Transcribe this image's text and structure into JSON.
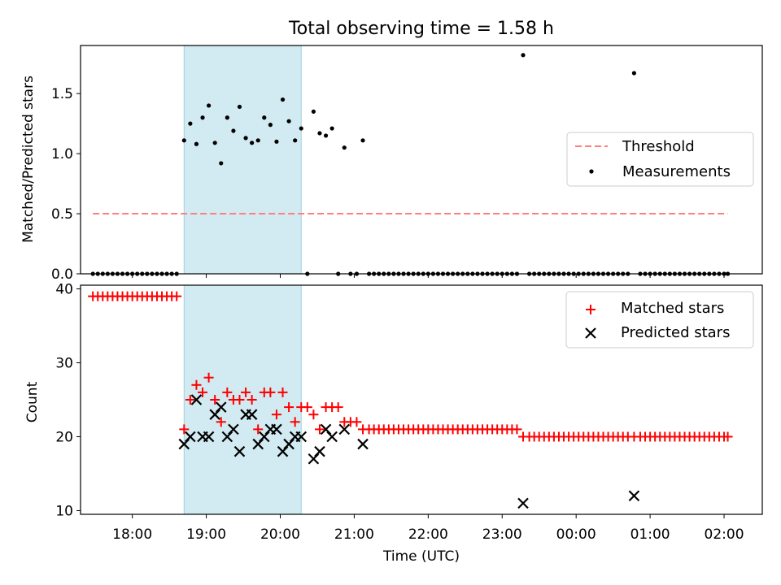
{
  "chart_data": [
    {
      "type": "scatter",
      "title": "Total observing time = 1.58 h",
      "xlabel": "",
      "ylabel": "Matched/Predicted stars",
      "xlim": [
        "17:18",
        "02:31"
      ],
      "ylim": [
        0,
        1.9
      ],
      "yticks": [
        "0.0",
        "0.5",
        "1.0",
        "1.5"
      ],
      "ytick_values": [
        0,
        0.5,
        1.0,
        1.5
      ],
      "xtick_values": [
        "18:00",
        "19:00",
        "20:00",
        "21:00",
        "22:00",
        "23:00",
        "00:00",
        "01:00",
        "02:00"
      ],
      "shaded_interval": [
        "18:42",
        "20:17"
      ],
      "shade_color": "#add8e6",
      "legend": {
        "placement": "center-right",
        "threshold_label": "Threshold",
        "measurements_label": "Measurements"
      },
      "threshold": {
        "x": [
          "17:28",
          "02:03"
        ],
        "y": 0.5,
        "color": "#ff7f7f"
      },
      "measurements_color": "#000000",
      "measurements": [
        [
          "17:28",
          0
        ],
        [
          "17:32",
          0
        ],
        [
          "17:36",
          0
        ],
        [
          "17:40",
          0
        ],
        [
          "17:44",
          0
        ],
        [
          "17:48",
          0
        ],
        [
          "17:52",
          0
        ],
        [
          "17:56",
          0
        ],
        [
          "18:00",
          0
        ],
        [
          "18:04",
          0
        ],
        [
          "18:08",
          0
        ],
        [
          "18:12",
          0
        ],
        [
          "18:16",
          0
        ],
        [
          "18:20",
          0
        ],
        [
          "18:24",
          0
        ],
        [
          "18:28",
          0
        ],
        [
          "18:32",
          0
        ],
        [
          "18:36",
          0
        ],
        [
          "18:42",
          1.11
        ],
        [
          "18:47",
          1.25
        ],
        [
          "18:52",
          1.08
        ],
        [
          "18:57",
          1.3
        ],
        [
          "19:02",
          1.4
        ],
        [
          "19:07",
          1.09
        ],
        [
          "19:12",
          0.92
        ],
        [
          "19:17",
          1.3
        ],
        [
          "19:22",
          1.19
        ],
        [
          "19:27",
          1.39
        ],
        [
          "19:32",
          1.13
        ],
        [
          "19:37",
          1.09
        ],
        [
          "19:42",
          1.11
        ],
        [
          "19:47",
          1.3
        ],
        [
          "19:52",
          1.24
        ],
        [
          "19:57",
          1.1
        ],
        [
          "20:02",
          1.45
        ],
        [
          "20:07",
          1.27
        ],
        [
          "20:12",
          1.11
        ],
        [
          "20:17",
          1.21
        ],
        [
          "20:22",
          0
        ],
        [
          "20:27",
          1.35
        ],
        [
          "20:32",
          1.17
        ],
        [
          "20:37",
          1.15
        ],
        [
          "20:42",
          1.21
        ],
        [
          "20:47",
          0
        ],
        [
          "20:52",
          1.05
        ],
        [
          "20:57",
          0
        ],
        [
          "21:02",
          0
        ],
        [
          "21:07",
          1.11
        ],
        [
          "21:12",
          0
        ],
        [
          "21:16",
          0
        ],
        [
          "21:20",
          0
        ],
        [
          "21:24",
          0
        ],
        [
          "21:28",
          0
        ],
        [
          "21:32",
          0
        ],
        [
          "21:36",
          0
        ],
        [
          "21:40",
          0
        ],
        [
          "21:44",
          0
        ],
        [
          "21:48",
          0
        ],
        [
          "21:52",
          0
        ],
        [
          "21:56",
          0
        ],
        [
          "22:00",
          0
        ],
        [
          "22:04",
          0
        ],
        [
          "22:08",
          0
        ],
        [
          "22:12",
          0
        ],
        [
          "22:16",
          0
        ],
        [
          "22:20",
          0
        ],
        [
          "22:24",
          0
        ],
        [
          "22:28",
          0
        ],
        [
          "22:32",
          0
        ],
        [
          "22:36",
          0
        ],
        [
          "22:40",
          0
        ],
        [
          "22:44",
          0
        ],
        [
          "22:48",
          0
        ],
        [
          "22:52",
          0
        ],
        [
          "22:56",
          0
        ],
        [
          "23:00",
          0
        ],
        [
          "23:04",
          0
        ],
        [
          "23:08",
          0
        ],
        [
          "23:12",
          0
        ],
        [
          "23:17",
          1.82
        ],
        [
          "23:22",
          0
        ],
        [
          "23:26",
          0
        ],
        [
          "23:30",
          0
        ],
        [
          "23:34",
          0
        ],
        [
          "23:38",
          0
        ],
        [
          "23:42",
          0
        ],
        [
          "23:46",
          0
        ],
        [
          "23:50",
          0
        ],
        [
          "23:54",
          0
        ],
        [
          "23:58",
          0
        ],
        [
          "00:02",
          0
        ],
        [
          "00:06",
          0
        ],
        [
          "00:10",
          0
        ],
        [
          "00:14",
          0
        ],
        [
          "00:18",
          0
        ],
        [
          "00:22",
          0
        ],
        [
          "00:26",
          0
        ],
        [
          "00:30",
          0
        ],
        [
          "00:34",
          0
        ],
        [
          "00:38",
          0
        ],
        [
          "00:42",
          0
        ],
        [
          "00:47",
          1.67
        ],
        [
          "00:52",
          0
        ],
        [
          "00:56",
          0
        ],
        [
          "01:00",
          0
        ],
        [
          "01:04",
          0
        ],
        [
          "01:08",
          0
        ],
        [
          "01:12",
          0
        ],
        [
          "01:16",
          0
        ],
        [
          "01:20",
          0
        ],
        [
          "01:24",
          0
        ],
        [
          "01:28",
          0
        ],
        [
          "01:32",
          0
        ],
        [
          "01:36",
          0
        ],
        [
          "01:40",
          0
        ],
        [
          "01:44",
          0
        ],
        [
          "01:48",
          0
        ],
        [
          "01:52",
          0
        ],
        [
          "01:56",
          0
        ],
        [
          "02:00",
          0
        ],
        [
          "02:03",
          0
        ]
      ]
    },
    {
      "type": "scatter",
      "title": "",
      "xlabel": "Time (UTC)",
      "ylabel": "Count",
      "xlim": [
        "17:18",
        "02:31"
      ],
      "ylim": [
        9.5,
        40.5
      ],
      "yticks": [
        "10",
        "20",
        "30",
        "40"
      ],
      "ytick_values": [
        10,
        20,
        30,
        40
      ],
      "xticks": [
        "18:00",
        "19:00",
        "20:00",
        "21:00",
        "22:00",
        "23:00",
        "00:00",
        "01:00",
        "02:00"
      ],
      "xtick_values": [
        "18:00",
        "19:00",
        "20:00",
        "21:00",
        "22:00",
        "23:00",
        "00:00",
        "01:00",
        "02:00"
      ],
      "shaded_interval": [
        "18:42",
        "20:17"
      ],
      "shade_color": "#add8e6",
      "legend": {
        "placement": "top-right",
        "matched_label": "Matched stars",
        "predicted_label": "Predicted stars"
      },
      "series": [
        {
          "name": "Matched stars",
          "marker": "+",
          "color": "#ff0000",
          "points": [
            [
              "17:28",
              39
            ],
            [
              "17:32",
              39
            ],
            [
              "17:36",
              39
            ],
            [
              "17:40",
              39
            ],
            [
              "17:44",
              39
            ],
            [
              "17:48",
              39
            ],
            [
              "17:52",
              39
            ],
            [
              "17:56",
              39
            ],
            [
              "18:00",
              39
            ],
            [
              "18:04",
              39
            ],
            [
              "18:08",
              39
            ],
            [
              "18:12",
              39
            ],
            [
              "18:16",
              39
            ],
            [
              "18:20",
              39
            ],
            [
              "18:24",
              39
            ],
            [
              "18:28",
              39
            ],
            [
              "18:32",
              39
            ],
            [
              "18:36",
              39
            ],
            [
              "18:42",
              21
            ],
            [
              "18:47",
              25
            ],
            [
              "18:52",
              27
            ],
            [
              "18:57",
              26
            ],
            [
              "19:02",
              28
            ],
            [
              "19:07",
              25
            ],
            [
              "19:12",
              22
            ],
            [
              "19:17",
              26
            ],
            [
              "19:22",
              25
            ],
            [
              "19:27",
              25
            ],
            [
              "19:32",
              26
            ],
            [
              "19:37",
              25
            ],
            [
              "19:42",
              21
            ],
            [
              "19:47",
              26
            ],
            [
              "19:52",
              26
            ],
            [
              "19:57",
              23
            ],
            [
              "20:02",
              26
            ],
            [
              "20:07",
              24
            ],
            [
              "20:12",
              22
            ],
            [
              "20:17",
              24
            ],
            [
              "20:22",
              24
            ],
            [
              "20:27",
              23
            ],
            [
              "20:32",
              21
            ],
            [
              "20:37",
              24
            ],
            [
              "20:42",
              24
            ],
            [
              "20:47",
              24
            ],
            [
              "20:52",
              22
            ],
            [
              "20:57",
              22
            ],
            [
              "21:02",
              22
            ],
            [
              "21:07",
              21
            ],
            [
              "21:12",
              21
            ],
            [
              "21:16",
              21
            ],
            [
              "21:20",
              21
            ],
            [
              "21:24",
              21
            ],
            [
              "21:28",
              21
            ],
            [
              "21:32",
              21
            ],
            [
              "21:36",
              21
            ],
            [
              "21:40",
              21
            ],
            [
              "21:44",
              21
            ],
            [
              "21:48",
              21
            ],
            [
              "21:52",
              21
            ],
            [
              "21:56",
              21
            ],
            [
              "22:00",
              21
            ],
            [
              "22:04",
              21
            ],
            [
              "22:08",
              21
            ],
            [
              "22:12",
              21
            ],
            [
              "22:16",
              21
            ],
            [
              "22:20",
              21
            ],
            [
              "22:24",
              21
            ],
            [
              "22:28",
              21
            ],
            [
              "22:32",
              21
            ],
            [
              "22:36",
              21
            ],
            [
              "22:40",
              21
            ],
            [
              "22:44",
              21
            ],
            [
              "22:48",
              21
            ],
            [
              "22:52",
              21
            ],
            [
              "22:56",
              21
            ],
            [
              "23:00",
              21
            ],
            [
              "23:04",
              21
            ],
            [
              "23:08",
              21
            ],
            [
              "23:12",
              21
            ],
            [
              "23:17",
              20
            ],
            [
              "23:22",
              20
            ],
            [
              "23:26",
              20
            ],
            [
              "23:30",
              20
            ],
            [
              "23:34",
              20
            ],
            [
              "23:38",
              20
            ],
            [
              "23:42",
              20
            ],
            [
              "23:46",
              20
            ],
            [
              "23:50",
              20
            ],
            [
              "23:54",
              20
            ],
            [
              "23:58",
              20
            ],
            [
              "00:02",
              20
            ],
            [
              "00:06",
              20
            ],
            [
              "00:10",
              20
            ],
            [
              "00:14",
              20
            ],
            [
              "00:18",
              20
            ],
            [
              "00:22",
              20
            ],
            [
              "00:26",
              20
            ],
            [
              "00:30",
              20
            ],
            [
              "00:34",
              20
            ],
            [
              "00:38",
              20
            ],
            [
              "00:42",
              20
            ],
            [
              "00:47",
              20
            ],
            [
              "00:52",
              20
            ],
            [
              "00:56",
              20
            ],
            [
              "01:00",
              20
            ],
            [
              "01:04",
              20
            ],
            [
              "01:08",
              20
            ],
            [
              "01:12",
              20
            ],
            [
              "01:16",
              20
            ],
            [
              "01:20",
              20
            ],
            [
              "01:24",
              20
            ],
            [
              "01:28",
              20
            ],
            [
              "01:32",
              20
            ],
            [
              "01:36",
              20
            ],
            [
              "01:40",
              20
            ],
            [
              "01:44",
              20
            ],
            [
              "01:48",
              20
            ],
            [
              "01:52",
              20
            ],
            [
              "01:56",
              20
            ],
            [
              "02:00",
              20
            ],
            [
              "02:03",
              20
            ]
          ]
        },
        {
          "name": "Predicted stars",
          "marker": "x",
          "color": "#000000",
          "points": [
            [
              "18:42",
              19
            ],
            [
              "18:47",
              20
            ],
            [
              "18:52",
              25
            ],
            [
              "18:57",
              20
            ],
            [
              "19:02",
              20
            ],
            [
              "19:07",
              23
            ],
            [
              "19:12",
              24
            ],
            [
              "19:17",
              20
            ],
            [
              "19:22",
              21
            ],
            [
              "19:27",
              18
            ],
            [
              "19:32",
              23
            ],
            [
              "19:37",
              23
            ],
            [
              "19:42",
              19
            ],
            [
              "19:47",
              20
            ],
            [
              "19:52",
              21
            ],
            [
              "19:57",
              21
            ],
            [
              "20:02",
              18
            ],
            [
              "20:07",
              19
            ],
            [
              "20:12",
              20
            ],
            [
              "20:17",
              20
            ],
            [
              "20:27",
              17
            ],
            [
              "20:32",
              18
            ],
            [
              "20:37",
              21
            ],
            [
              "20:42",
              20
            ],
            [
              "20:52",
              21
            ],
            [
              "21:07",
              19
            ],
            [
              "23:17",
              11
            ],
            [
              "00:47",
              12
            ]
          ]
        }
      ]
    }
  ]
}
